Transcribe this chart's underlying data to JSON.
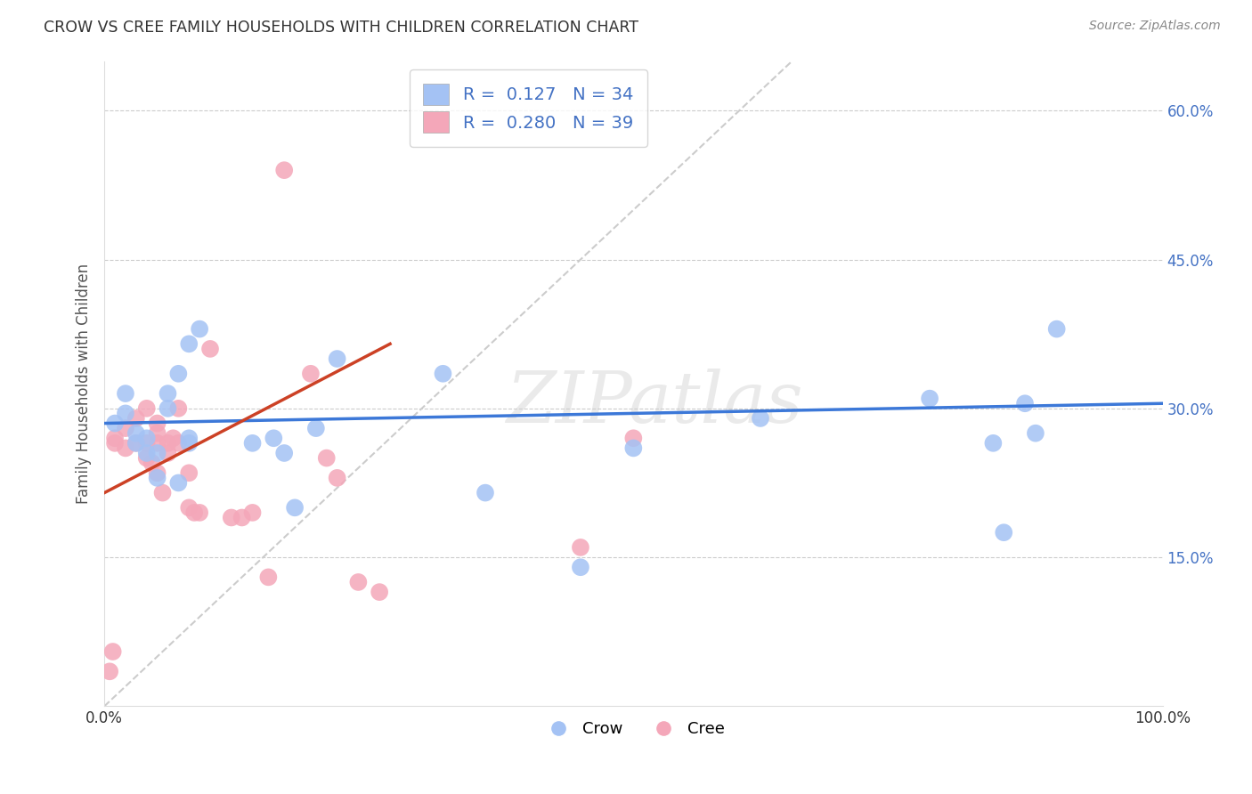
{
  "title": "CROW VS CREE FAMILY HOUSEHOLDS WITH CHILDREN CORRELATION CHART",
  "source": "Source: ZipAtlas.com",
  "ylabel": "Family Households with Children",
  "xlim": [
    0,
    1.0
  ],
  "ylim": [
    0,
    0.65
  ],
  "xticks": [
    0.0,
    0.2,
    0.4,
    0.6,
    0.8,
    1.0
  ],
  "xticklabels": [
    "0.0%",
    "",
    "",
    "",
    "",
    "100.0%"
  ],
  "yticks": [
    0.0,
    0.15,
    0.3,
    0.45,
    0.6
  ],
  "yticklabels": [
    "",
    "15.0%",
    "30.0%",
    "45.0%",
    "60.0%"
  ],
  "crow_color": "#a4c2f4",
  "cree_color": "#f4a7b9",
  "crow_line_color": "#3c78d8",
  "cree_line_color": "#cc4125",
  "diagonal_color": "#cccccc",
  "legend_R_crow": "0.127",
  "legend_N_crow": "34",
  "legend_R_cree": "0.280",
  "legend_N_cree": "39",
  "crow_scatter_x": [
    0.01,
    0.02,
    0.02,
    0.03,
    0.03,
    0.04,
    0.04,
    0.05,
    0.05,
    0.06,
    0.06,
    0.07,
    0.07,
    0.08,
    0.08,
    0.08,
    0.09,
    0.14,
    0.16,
    0.17,
    0.18,
    0.2,
    0.22,
    0.32,
    0.36,
    0.45,
    0.5,
    0.62,
    0.78,
    0.84,
    0.85,
    0.87,
    0.88,
    0.9
  ],
  "crow_scatter_y": [
    0.285,
    0.295,
    0.315,
    0.265,
    0.275,
    0.255,
    0.27,
    0.255,
    0.23,
    0.3,
    0.315,
    0.335,
    0.225,
    0.365,
    0.27,
    0.265,
    0.38,
    0.265,
    0.27,
    0.255,
    0.2,
    0.28,
    0.35,
    0.335,
    0.215,
    0.14,
    0.26,
    0.29,
    0.31,
    0.265,
    0.175,
    0.305,
    0.275,
    0.38
  ],
  "cree_scatter_x": [
    0.005,
    0.008,
    0.01,
    0.01,
    0.02,
    0.02,
    0.03,
    0.03,
    0.04,
    0.04,
    0.04,
    0.045,
    0.05,
    0.05,
    0.05,
    0.05,
    0.055,
    0.06,
    0.06,
    0.065,
    0.07,
    0.07,
    0.08,
    0.08,
    0.085,
    0.09,
    0.1,
    0.12,
    0.13,
    0.14,
    0.155,
    0.17,
    0.195,
    0.21,
    0.22,
    0.24,
    0.26,
    0.45,
    0.5
  ],
  "cree_scatter_y": [
    0.035,
    0.055,
    0.27,
    0.265,
    0.28,
    0.26,
    0.29,
    0.265,
    0.25,
    0.265,
    0.3,
    0.245,
    0.265,
    0.275,
    0.285,
    0.235,
    0.215,
    0.265,
    0.255,
    0.27,
    0.265,
    0.3,
    0.235,
    0.2,
    0.195,
    0.195,
    0.36,
    0.19,
    0.19,
    0.195,
    0.13,
    0.54,
    0.335,
    0.25,
    0.23,
    0.125,
    0.115,
    0.16,
    0.27
  ],
  "watermark": "ZIPatlas",
  "background_color": "#ffffff",
  "grid_color": "#cccccc",
  "ytick_color": "#4472c4",
  "xtick_color": "#333333",
  "ylabel_color": "#555555",
  "title_color": "#333333",
  "source_color": "#888888"
}
